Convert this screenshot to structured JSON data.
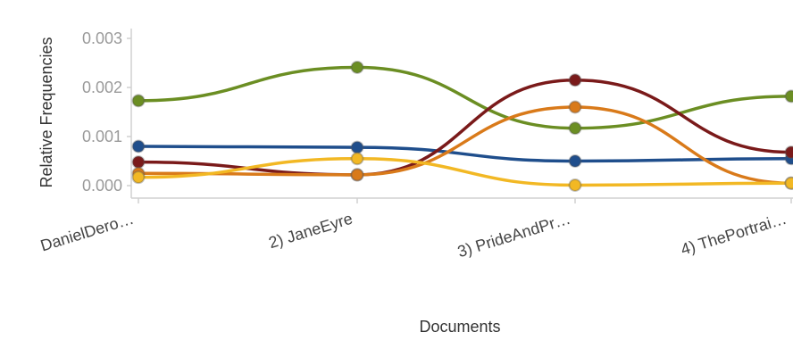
{
  "chart_data": {
    "type": "line",
    "xlabel": "Documents",
    "ylabel": "Relative Frequencies",
    "categories": [
      "DanielDero…",
      "2) JaneEyre",
      "3) PrideAndPr…",
      "4) ThePortrai…"
    ],
    "y_ticks": [
      "0.000",
      "0.001",
      "0.002",
      "0.003"
    ],
    "ylim": [
      0,
      0.003
    ],
    "grid": false,
    "legend": "none",
    "series": [
      {
        "color": "#6b8e23",
        "values": [
          0.00173,
          0.00241,
          0.00117,
          0.00182
        ]
      },
      {
        "color": "#1f4e8c",
        "values": [
          0.0008,
          0.00078,
          0.0005,
          0.00055
        ]
      },
      {
        "color": "#7a1a1a",
        "values": [
          0.00048,
          0.00022,
          0.00215,
          0.00068
        ]
      },
      {
        "color": "#d97a1a",
        "values": [
          0.00025,
          0.00022,
          0.0016,
          5e-05
        ]
      },
      {
        "color": "#f2b824",
        "values": [
          0.00017,
          0.00055,
          1e-05,
          5e-05
        ]
      }
    ]
  }
}
